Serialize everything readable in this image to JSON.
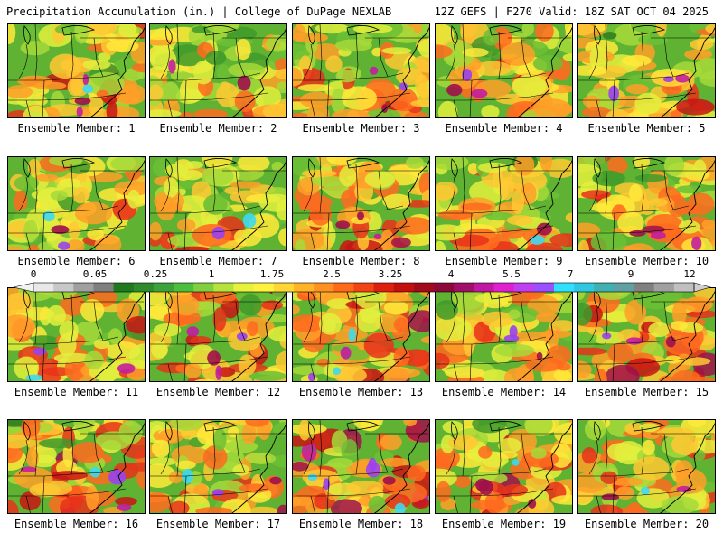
{
  "header": {
    "title": "Precipitation Accumulation (in.) | College of DuPage NEXLAB",
    "run_info": "12Z GEFS | F270 Valid: 18Z SAT OCT 04 2025"
  },
  "colorbar": {
    "tick_labels": [
      "0",
      "0.05",
      "0.25",
      "1",
      "1.75",
      "2.5",
      "3.25",
      "4",
      "5.5",
      "7",
      "9",
      "12"
    ],
    "colors": [
      "#e8e8e8",
      "#c8c8c8",
      "#a0a0a0",
      "#7f7f7f",
      "#1f7a1f",
      "#2e8b2e",
      "#3ca33c",
      "#4cbf3c",
      "#7fcf3f",
      "#b5e23c",
      "#e8f23c",
      "#fff23c",
      "#ffd633",
      "#ffb428",
      "#ff9122",
      "#ff6a1a",
      "#f24414",
      "#e0200f",
      "#c4100c",
      "#a30a1a",
      "#8b0a3a",
      "#a0106a",
      "#c018a0",
      "#e020d0",
      "#c040f0",
      "#9a50ff",
      "#30e0ff",
      "#30c8e0",
      "#40b0b0",
      "#60a0a0",
      "#808080",
      "#a0a0a0",
      "#c0c0c0"
    ]
  },
  "members": [
    {
      "label": "Ensemble Member: 1",
      "intensity": 0.75
    },
    {
      "label": "Ensemble Member: 2",
      "intensity": 0.35
    },
    {
      "label": "Ensemble Member: 3",
      "intensity": 0.5
    },
    {
      "label": "Ensemble Member: 4",
      "intensity": 0.65
    },
    {
      "label": "Ensemble Member: 5",
      "intensity": 0.55
    },
    {
      "label": "Ensemble Member: 6",
      "intensity": 0.5
    },
    {
      "label": "Ensemble Member: 7",
      "intensity": 0.4
    },
    {
      "label": "Ensemble Member: 8",
      "intensity": 0.6
    },
    {
      "label": "Ensemble Member: 9",
      "intensity": 0.45
    },
    {
      "label": "Ensemble Member: 10",
      "intensity": 0.6
    },
    {
      "label": "Ensemble Member: 11",
      "intensity": 0.55
    },
    {
      "label": "Ensemble Member: 12",
      "intensity": 0.8
    },
    {
      "label": "Ensemble Member: 13",
      "intensity": 0.8
    },
    {
      "label": "Ensemble Member: 14",
      "intensity": 0.55
    },
    {
      "label": "Ensemble Member: 15",
      "intensity": 0.65
    },
    {
      "label": "Ensemble Member: 16",
      "intensity": 0.8
    },
    {
      "label": "Ensemble Member: 17",
      "intensity": 0.55
    },
    {
      "label": "Ensemble Member: 18",
      "intensity": 0.9
    },
    {
      "label": "Ensemble Member: 19",
      "intensity": 0.7
    },
    {
      "label": "Ensemble Member: 20",
      "intensity": 0.5
    }
  ]
}
